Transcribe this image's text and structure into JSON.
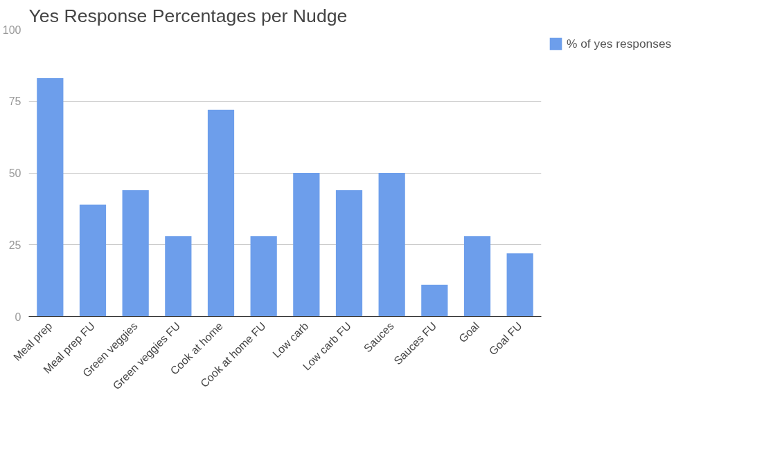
{
  "chart_data": {
    "type": "bar",
    "title": "Yes Response Percentages per Nudge",
    "categories": [
      "Meal prep",
      "Meal prep FU",
      "Green veggies",
      "Green veggies FU",
      "Cook at home",
      "Cook at home FU",
      "Low carb",
      "Low carb FU",
      "Sauces",
      "Sauces FU",
      "Goal",
      "Goal FU"
    ],
    "series": [
      {
        "name": "% of yes responses",
        "color": "#6d9eeb",
        "values": [
          83,
          39,
          44,
          28,
          72,
          28,
          50,
          44,
          50,
          11,
          28,
          22
        ]
      }
    ],
    "ylim": [
      0,
      100
    ],
    "yticks": [
      0,
      25,
      50,
      75,
      100
    ],
    "grid": "y",
    "legend": "top right"
  }
}
